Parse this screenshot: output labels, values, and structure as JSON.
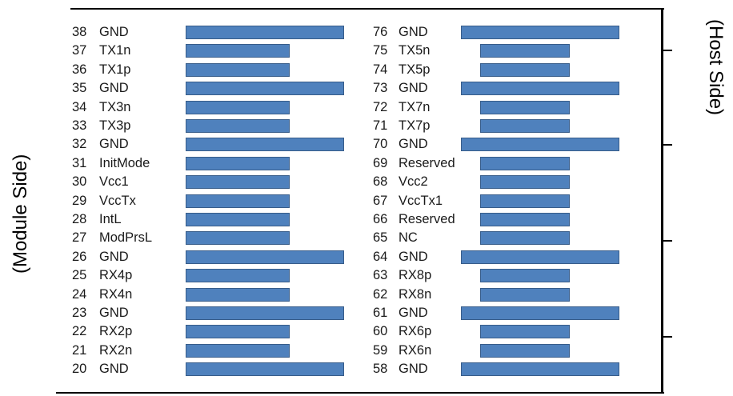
{
  "labels": {
    "module_side": "(Module Side)",
    "host_side": "(Host Side)"
  },
  "colors": {
    "pad_fill": "#4f81bd",
    "pad_border": "#385d8a",
    "text": "#1a1a1a"
  },
  "left_pins": [
    {
      "num": "38",
      "name": "GND",
      "pad": "long"
    },
    {
      "num": "37",
      "name": "TX1n",
      "pad": "short"
    },
    {
      "num": "36",
      "name": "TX1p",
      "pad": "short"
    },
    {
      "num": "35",
      "name": "GND",
      "pad": "long"
    },
    {
      "num": "34",
      "name": "TX3n",
      "pad": "short"
    },
    {
      "num": "33",
      "name": "TX3p",
      "pad": "short"
    },
    {
      "num": "32",
      "name": "GND",
      "pad": "long"
    },
    {
      "num": "31",
      "name": "InitMode",
      "pad": "short"
    },
    {
      "num": "30",
      "name": "Vcc1",
      "pad": "short"
    },
    {
      "num": "29",
      "name": "VccTx",
      "pad": "short"
    },
    {
      "num": "28",
      "name": "IntL",
      "pad": "short"
    },
    {
      "num": "27",
      "name": "ModPrsL",
      "pad": "short"
    },
    {
      "num": "26",
      "name": "GND",
      "pad": "long"
    },
    {
      "num": "25",
      "name": "RX4p",
      "pad": "short"
    },
    {
      "num": "24",
      "name": "RX4n",
      "pad": "short"
    },
    {
      "num": "23",
      "name": "GND",
      "pad": "long"
    },
    {
      "num": "22",
      "name": "RX2p",
      "pad": "short"
    },
    {
      "num": "21",
      "name": "RX2n",
      "pad": "short"
    },
    {
      "num": "20",
      "name": "GND",
      "pad": "long"
    }
  ],
  "right_pins": [
    {
      "num": "76",
      "name": "GND",
      "pad": "long"
    },
    {
      "num": "75",
      "name": "TX5n",
      "pad": "short"
    },
    {
      "num": "74",
      "name": "TX5p",
      "pad": "short"
    },
    {
      "num": "73",
      "name": "GND",
      "pad": "long"
    },
    {
      "num": "72",
      "name": "TX7n",
      "pad": "short"
    },
    {
      "num": "71",
      "name": "TX7p",
      "pad": "short"
    },
    {
      "num": "70",
      "name": "GND",
      "pad": "long"
    },
    {
      "num": "69",
      "name": "Reserved",
      "pad": "short"
    },
    {
      "num": "68",
      "name": "Vcc2",
      "pad": "short"
    },
    {
      "num": "67",
      "name": "VccTx1",
      "pad": "short"
    },
    {
      "num": "66",
      "name": "Reserved",
      "pad": "short"
    },
    {
      "num": "65",
      "name": "NC",
      "pad": "short"
    },
    {
      "num": "64",
      "name": "GND",
      "pad": "long"
    },
    {
      "num": "63",
      "name": "RX8p",
      "pad": "short"
    },
    {
      "num": "62",
      "name": "RX8n",
      "pad": "short"
    },
    {
      "num": "61",
      "name": "GND",
      "pad": "long"
    },
    {
      "num": "60",
      "name": "RX6p",
      "pad": "short"
    },
    {
      "num": "59",
      "name": "RX6n",
      "pad": "short"
    },
    {
      "num": "58",
      "name": "GND",
      "pad": "long"
    }
  ]
}
